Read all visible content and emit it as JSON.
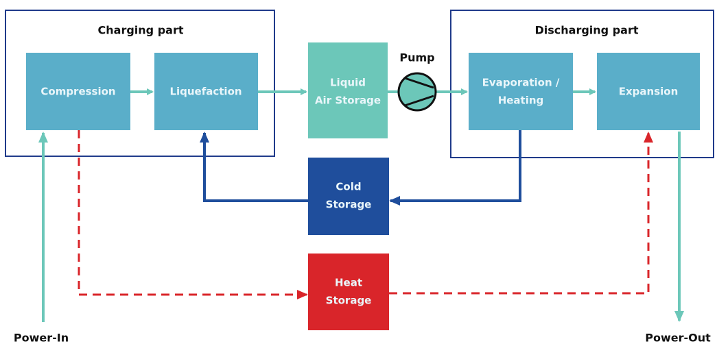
{
  "groups": [
    {
      "title": "Charging part"
    },
    {
      "title": "Discharging part"
    }
  ],
  "nodes": [
    {
      "lines": [
        "Compression"
      ]
    },
    {
      "lines": [
        "Liquefaction"
      ]
    },
    {
      "lines": [
        "Liquid",
        "Air Storage"
      ]
    },
    {
      "lines": [
        "Evaporation /",
        "Heating"
      ]
    },
    {
      "lines": [
        "Expansion"
      ]
    },
    {
      "lines": [
        "Cold",
        "Storage"
      ]
    },
    {
      "lines": [
        "Heat",
        "Storage"
      ]
    }
  ],
  "pump": "Pump",
  "power_in": "Power-In",
  "power_out": "Power-Out"
}
